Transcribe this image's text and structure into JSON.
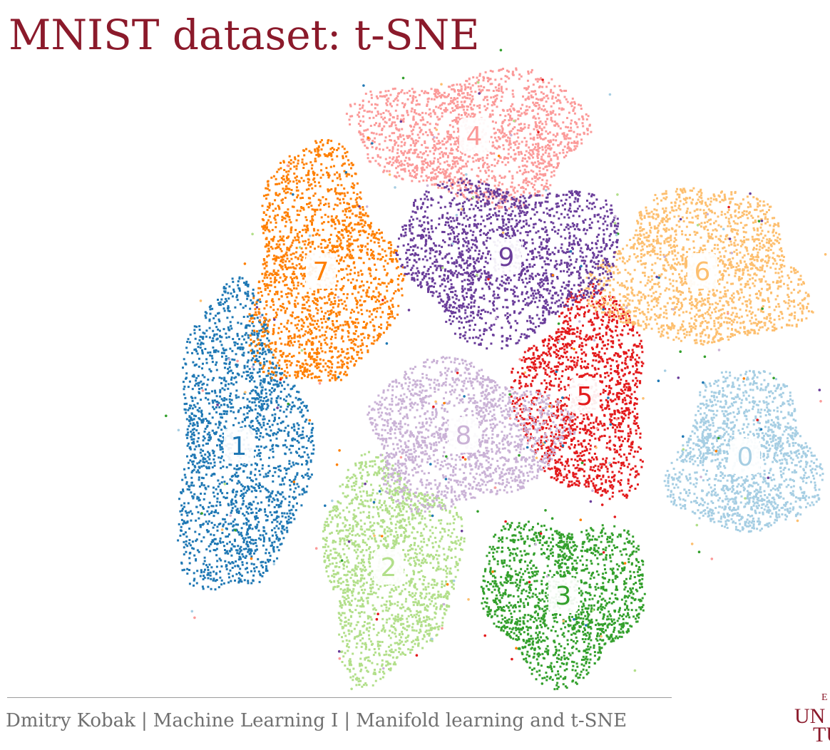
{
  "slide": {
    "title": "MNIST dataset: t-SNE",
    "title_color": "#8b1a2b",
    "footer": {
      "author": "Dmitry Kobak",
      "course": "Machine Learning I",
      "topic": "Manifold learning and t-SNE",
      "separator": "|"
    },
    "logo": {
      "top": "E",
      "line1": "UN",
      "line2": "TU",
      "color": "#8b1a2b"
    }
  },
  "chart_data": {
    "type": "scatter",
    "title": "",
    "xlabel": "",
    "ylabel": "",
    "grid": false,
    "axes_visible": false,
    "legend": "none",
    "clusters": [
      {
        "label": "0",
        "color": "#a6cee3",
        "center": [
          1045,
          640
        ],
        "radius": [
          100,
          115
        ]
      },
      {
        "label": "1",
        "color": "#1f78b4",
        "center": [
          335,
          625
        ],
        "radius": [
          90,
          215
        ]
      },
      {
        "label": "2",
        "color": "#b2df8a",
        "center": [
          545,
          795
        ],
        "radius": [
          95,
          150
        ]
      },
      {
        "label": "3",
        "color": "#33a02c",
        "center": [
          790,
          835
        ],
        "radius": [
          115,
          110
        ]
      },
      {
        "label": "4",
        "color": "#fb9a99",
        "center": [
          665,
          190
        ],
        "radius": [
          165,
          90
        ]
      },
      {
        "label": "5",
        "color": "#e31a1c",
        "center": [
          820,
          555
        ],
        "radius": [
          90,
          145
        ]
      },
      {
        "label": "6",
        "color": "#fdbf6f",
        "center": [
          985,
          380
        ],
        "radius": [
          145,
          110
        ]
      },
      {
        "label": "7",
        "color": "#ff7f00",
        "center": [
          450,
          380
        ],
        "radius": [
          100,
          170
        ]
      },
      {
        "label": "8",
        "color": "#cab2d6",
        "center": [
          650,
          610
        ],
        "radius": [
          140,
          100
        ]
      },
      {
        "label": "9",
        "color": "#6a3d9a",
        "center": [
          710,
          360
        ],
        "radius": [
          155,
          110
        ]
      }
    ]
  }
}
